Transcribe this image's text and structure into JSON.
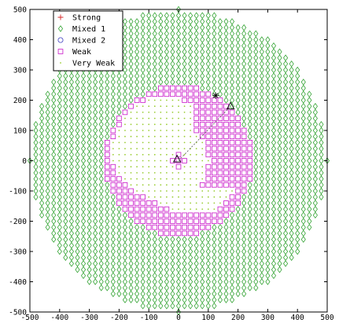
{
  "chart_data": {
    "type": "scatter",
    "title": "",
    "xlabel": "",
    "ylabel": "",
    "xlim": [
      -500,
      500
    ],
    "ylim": [
      -500,
      500
    ],
    "xticks": [
      -500,
      -400,
      -300,
      -200,
      -100,
      0,
      100,
      200,
      300,
      400,
      500
    ],
    "yticks": [
      -500,
      -400,
      -300,
      -200,
      -100,
      0,
      100,
      200,
      300,
      400,
      500
    ],
    "grid": false,
    "legend_position": "top-left",
    "grid_spacing": 20,
    "series": [
      {
        "name": "Strong",
        "marker": "plus",
        "color": "#d62728",
        "region": "points within 50 of the annotated point (175, 180)",
        "values": [
          [
            130,
            200
          ],
          [
            150,
            220
          ],
          [
            170,
            220
          ],
          [
            190,
            220
          ],
          [
            210,
            220
          ],
          [
            150,
            200
          ],
          [
            170,
            200
          ],
          [
            190,
            200
          ],
          [
            210,
            200
          ],
          [
            170,
            180
          ],
          [
            190,
            180
          ],
          [
            210,
            180
          ],
          [
            190,
            160
          ],
          [
            210,
            160
          ],
          [
            190,
            140
          ],
          [
            210,
            140
          ]
        ]
      },
      {
        "name": "Mixed 1",
        "marker": "diamond",
        "color": "#2ca02c",
        "region": "points within 500 of origin, outside the weak disc"
      },
      {
        "name": "Mixed 2",
        "marker": "circle",
        "color": "#4040c0",
        "region": "points near (150, 160)",
        "values": [
          [
            130,
            180
          ],
          [
            150,
            180
          ],
          [
            130,
            160
          ],
          [
            150,
            160
          ],
          [
            170,
            160
          ],
          [
            130,
            140
          ],
          [
            150,
            140
          ],
          [
            170,
            140
          ]
        ]
      },
      {
        "name": "Weak",
        "marker": "square",
        "color": "#cc22cc",
        "region": "points within 250 of origin, outside the very weak spiral"
      },
      {
        "name": "Very Weak",
        "marker": "dot",
        "color": "#9acd32",
        "region": "spiral-shaped inner region"
      }
    ],
    "annotations": [
      {
        "marker": "triangle",
        "x": -5,
        "y": 5
      },
      {
        "marker": "triangle",
        "x": 175,
        "y": 180
      },
      {
        "marker": "asterisk",
        "x": 125,
        "y": 215
      },
      {
        "marker": "dashed-line",
        "x": [
          0,
          175
        ],
        "y": [
          0,
          180
        ]
      }
    ]
  }
}
